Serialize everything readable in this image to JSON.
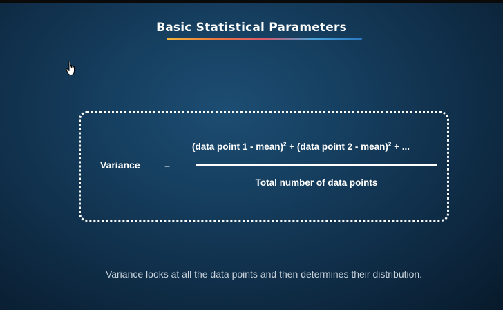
{
  "slide": {
    "title": "Basic Statistical Parameters",
    "underline_colors": [
      "#f2b53a",
      "#e9773f",
      "#d95a6b",
      "#4aa3d8",
      "#2b78c2"
    ],
    "formula": {
      "term": "Variance",
      "equals": "=",
      "numerator_part1": "(data point 1 - mean)",
      "numerator_part2": " + (data point 2 - mean)",
      "numerator_part3": " + ...",
      "exponent": "2",
      "denominator": "Total number of data points"
    },
    "caption": "Variance looks at all the data points and then determines their distribution."
  },
  "cursor": {
    "icon": "hand-pointer-icon"
  },
  "colors": {
    "background_center": "#1c4d72",
    "background_edge": "#081a2b",
    "text": "#ffffff",
    "caption_text": "#c9d3dc"
  }
}
